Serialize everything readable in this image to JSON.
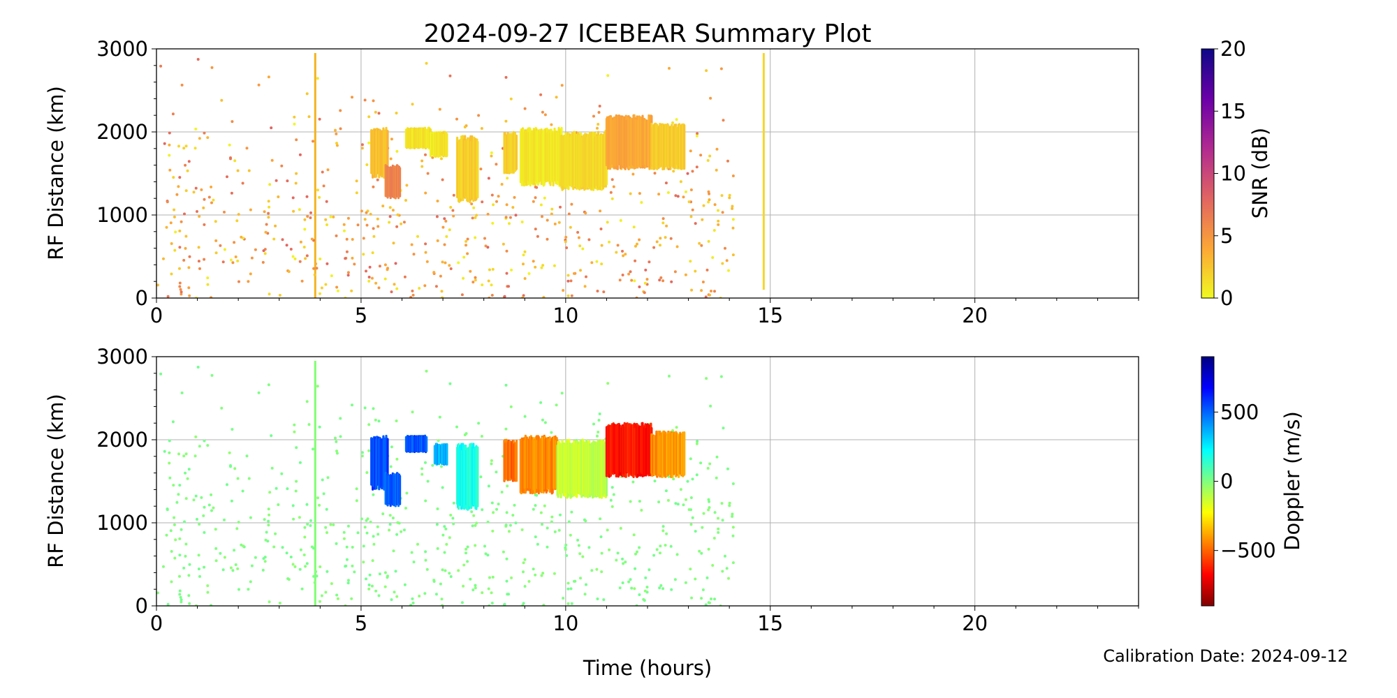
{
  "figure": {
    "title": "2024-09-27 ICEBEAR Summary Plot",
    "xlabel": "Time (hours)",
    "footer": "Calibration Date: 2024-09-12"
  },
  "chart_data": [
    {
      "type": "scatter",
      "name": "snr-panel",
      "xlim": [
        0,
        24
      ],
      "ylim": [
        0,
        3000
      ],
      "xticks": [
        0,
        5,
        10,
        15,
        20
      ],
      "yticks": [
        0,
        1000,
        2000,
        3000
      ],
      "ylabel": "RF Distance (km)",
      "grid": true,
      "colorbar": {
        "label": "SNR (dB)",
        "range": [
          0,
          20
        ],
        "ticks": [
          0,
          5,
          10,
          15,
          20
        ],
        "tick_labels": [
          "0",
          "5",
          "10",
          "15",
          "20"
        ],
        "colormap": "plasma_r",
        "stops": [
          "#f0f921",
          "#fca636",
          "#e16462",
          "#b12a90",
          "#6a00a8",
          "#0d0887"
        ]
      },
      "vertical_lines": [
        {
          "x": 3.88,
          "ymin": 0,
          "ymax": 2950,
          "color": "#f3b31f"
        },
        {
          "x": 14.84,
          "ymin": 100,
          "ymax": 2950,
          "color": "#f6d62b"
        }
      ],
      "clusters": [
        {
          "x_start": 5.25,
          "x_end": 5.65,
          "y_bottom": 1450,
          "y_top": 2050,
          "value": 3
        },
        {
          "x_start": 5.6,
          "x_end": 5.95,
          "y_bottom": 1200,
          "y_top": 1600,
          "value": 6
        },
        {
          "x_start": 6.1,
          "x_end": 6.7,
          "y_bottom": 1800,
          "y_top": 2050,
          "value": 1
        },
        {
          "x_start": 6.7,
          "x_end": 7.1,
          "y_bottom": 1700,
          "y_top": 2000,
          "value": 1
        },
        {
          "x_start": 7.35,
          "x_end": 7.85,
          "y_bottom": 1150,
          "y_top": 1950,
          "value": 2
        },
        {
          "x_start": 8.5,
          "x_end": 8.8,
          "y_bottom": 1500,
          "y_top": 2000,
          "value": 2
        },
        {
          "x_start": 8.9,
          "x_end": 9.9,
          "y_bottom": 1350,
          "y_top": 2050,
          "value": 1
        },
        {
          "x_start": 9.9,
          "x_end": 11.0,
          "y_bottom": 1300,
          "y_top": 2000,
          "value": 1.5
        },
        {
          "x_start": 11.0,
          "x_end": 12.1,
          "y_bottom": 1550,
          "y_top": 2200,
          "value": 4
        },
        {
          "x_start": 12.1,
          "x_end": 12.9,
          "y_bottom": 1550,
          "y_top": 2100,
          "value": 2
        }
      ],
      "scatter": {
        "x_range": [
          0,
          14.1
        ],
        "y_range": [
          0,
          2950
        ],
        "value_range": [
          0,
          8
        ],
        "count": 650,
        "seed": 11
      }
    },
    {
      "type": "scatter",
      "name": "doppler-panel",
      "xlim": [
        0,
        24
      ],
      "ylim": [
        0,
        3000
      ],
      "xticks": [
        0,
        5,
        10,
        15,
        20
      ],
      "yticks": [
        0,
        1000,
        2000,
        3000
      ],
      "ylabel": "RF Distance (km)",
      "grid": true,
      "colorbar": {
        "label": "Doppler (m/s)",
        "range": [
          -900,
          900
        ],
        "ticks": [
          -500,
          0,
          500
        ],
        "tick_labels": [
          "−500",
          "0",
          "500"
        ],
        "colormap": "jet_r",
        "stops": [
          "#800000",
          "#ff0000",
          "#ff8000",
          "#ffff00",
          "#80ff80",
          "#00ffff",
          "#0080ff",
          "#0000ff",
          "#000080"
        ]
      },
      "vertical_lines": [
        {
          "x": 3.88,
          "ymin": 0,
          "ymax": 2950,
          "color": "#80ff70"
        }
      ],
      "clusters": [
        {
          "x_start": 5.25,
          "x_end": 5.65,
          "y_bottom": 1400,
          "y_top": 2050,
          "value": 560
        },
        {
          "x_start": 5.6,
          "x_end": 5.95,
          "y_bottom": 1200,
          "y_top": 1600,
          "value": 500
        },
        {
          "x_start": 6.1,
          "x_end": 6.6,
          "y_bottom": 1850,
          "y_top": 2050,
          "value": 520
        },
        {
          "x_start": 6.8,
          "x_end": 7.1,
          "y_bottom": 1700,
          "y_top": 1950,
          "value": 380
        },
        {
          "x_start": 7.35,
          "x_end": 7.85,
          "y_bottom": 1150,
          "y_top": 1950,
          "value": 180
        },
        {
          "x_start": 8.5,
          "x_end": 8.8,
          "y_bottom": 1500,
          "y_top": 2000,
          "value": -500
        },
        {
          "x_start": 8.9,
          "x_end": 9.8,
          "y_bottom": 1350,
          "y_top": 2050,
          "value": -420
        },
        {
          "x_start": 9.8,
          "x_end": 11.0,
          "y_bottom": 1300,
          "y_top": 2000,
          "value": -120
        },
        {
          "x_start": 11.0,
          "x_end": 12.1,
          "y_bottom": 1550,
          "y_top": 2200,
          "value": -650
        },
        {
          "x_start": 12.1,
          "x_end": 12.9,
          "y_bottom": 1550,
          "y_top": 2100,
          "value": -420
        }
      ],
      "scatter": {
        "x_range": [
          0,
          14.1
        ],
        "y_range": [
          0,
          2950
        ],
        "value_range": [
          -30,
          30
        ],
        "count": 650,
        "seed": 11
      }
    }
  ]
}
